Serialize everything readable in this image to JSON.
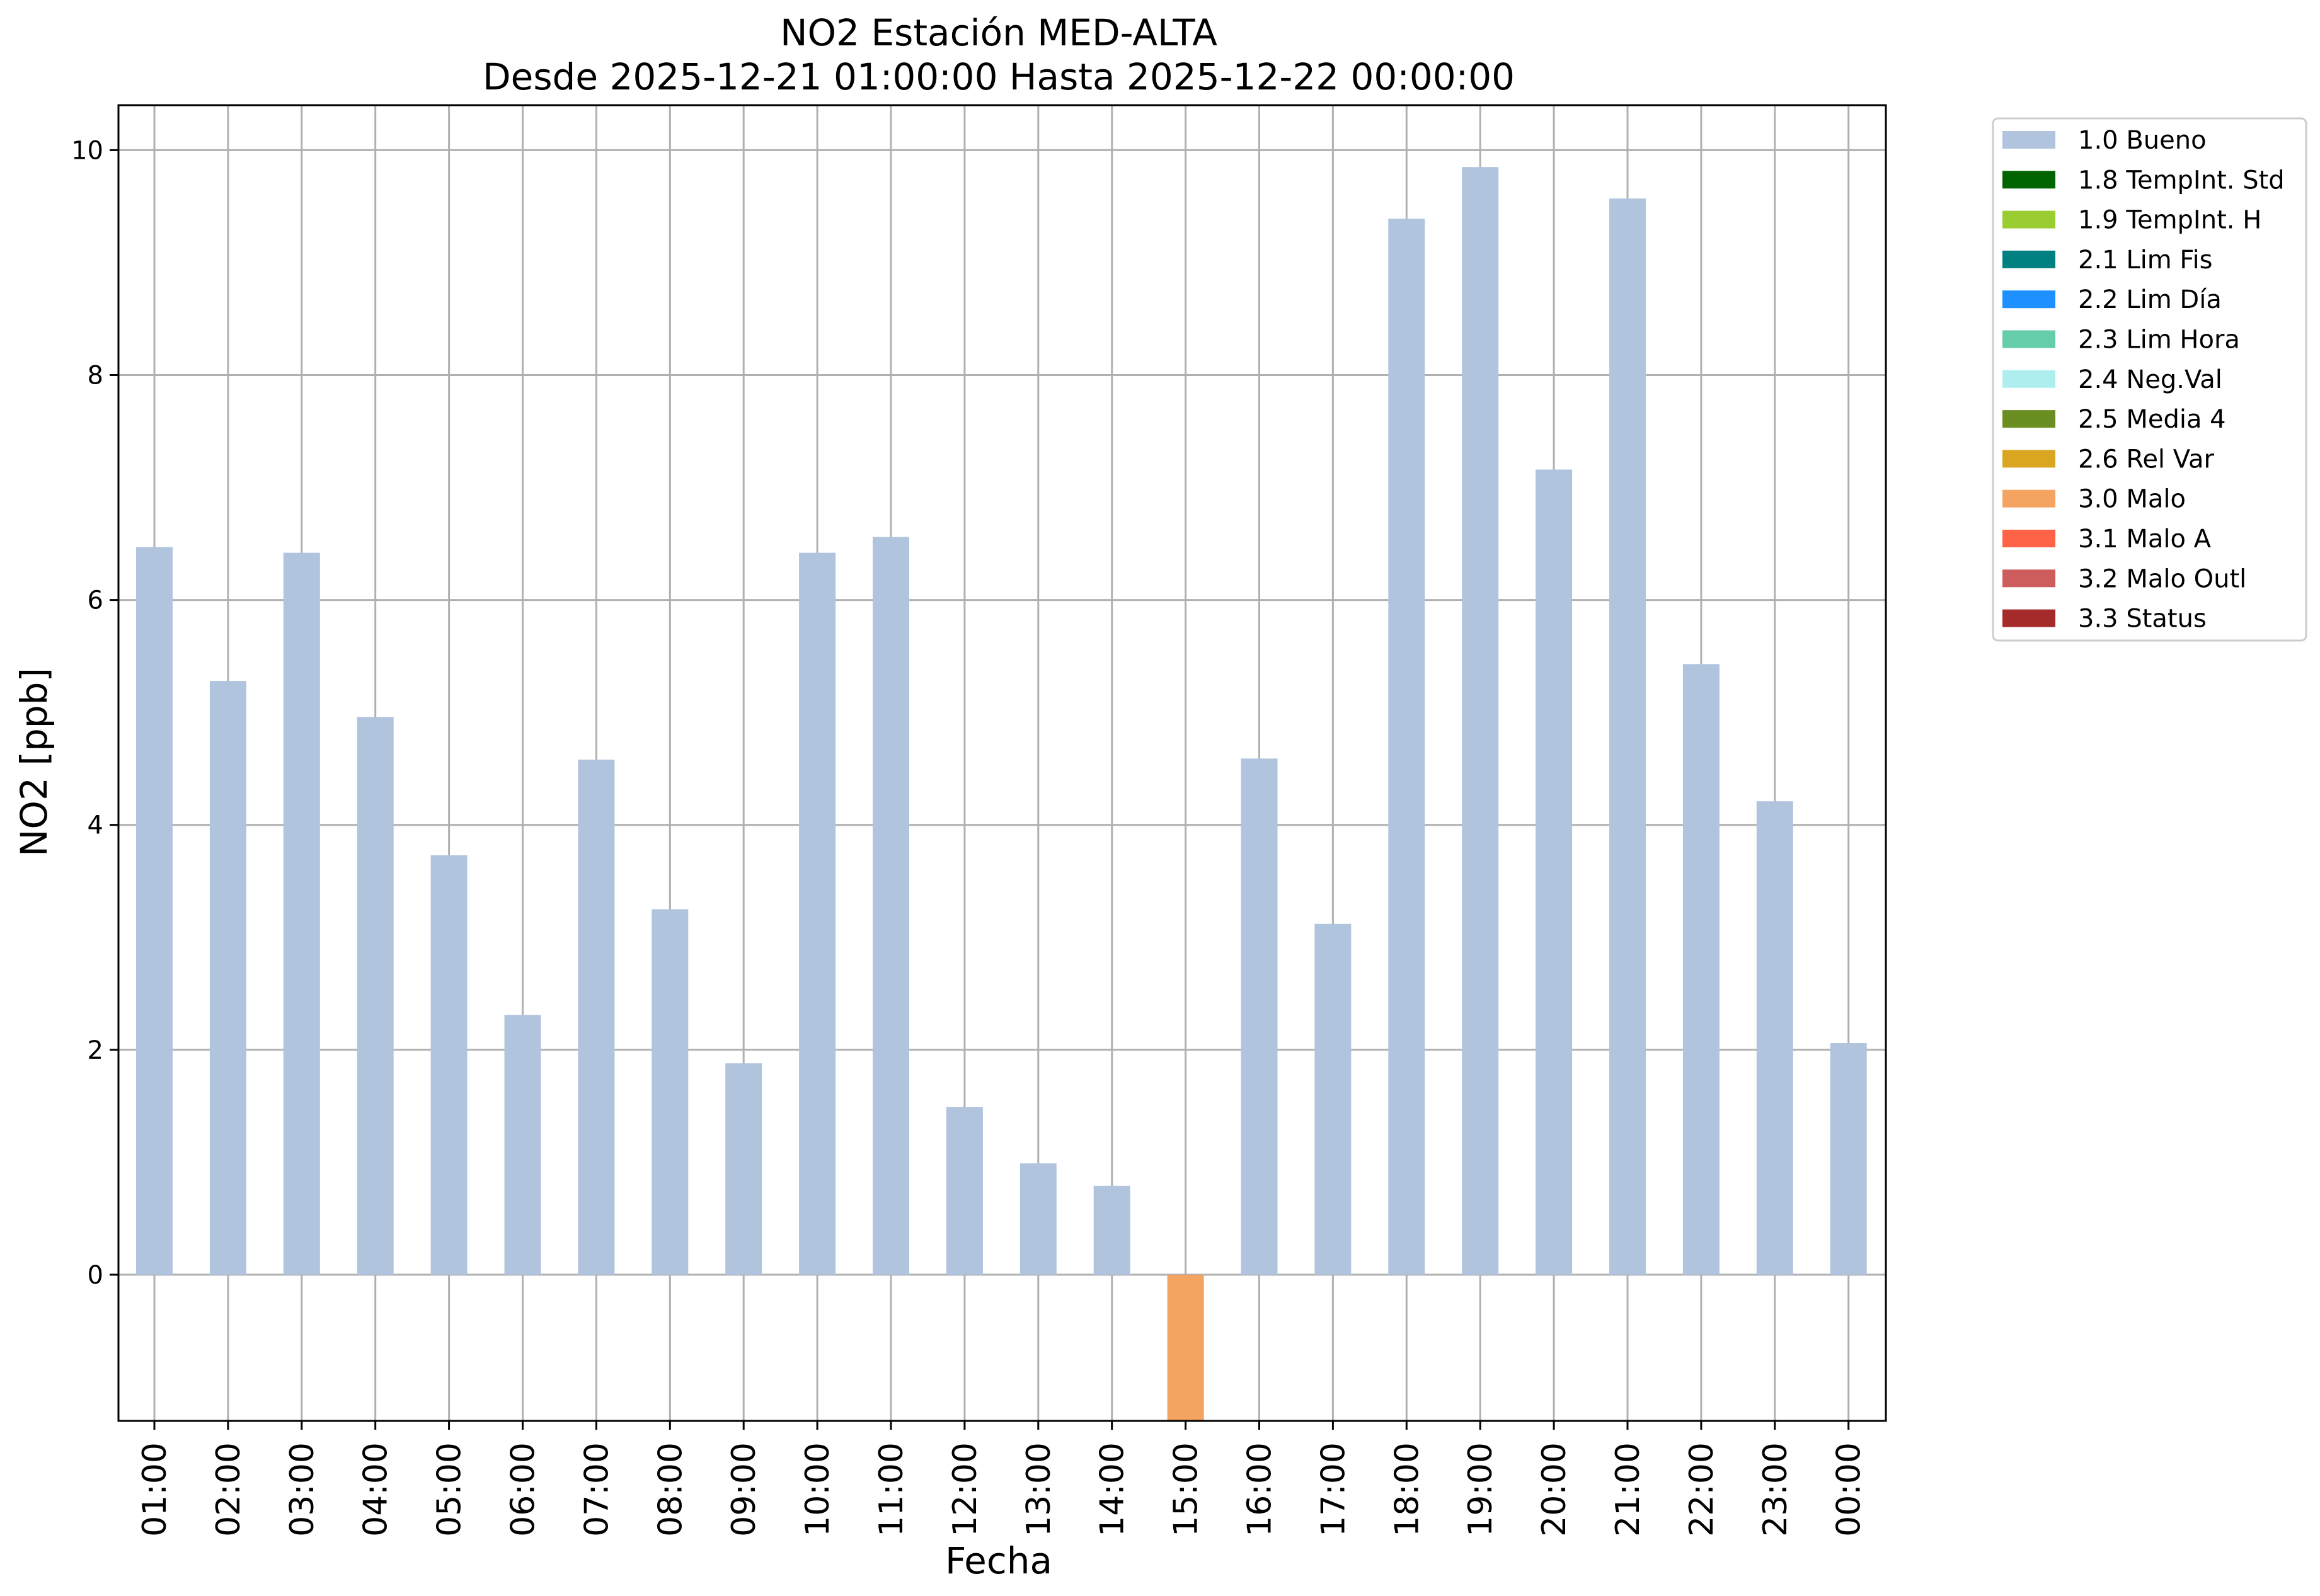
{
  "chart_data": {
    "type": "bar",
    "title": "NO2 Estación MED-ALTA",
    "subtitle": "Desde 2025-12-21 01:00:00 Hasta 2025-12-22 00:00:00",
    "xlabel": "Fecha",
    "ylabel": "NO2 [ppb]",
    "ylim": [
      -1.3,
      10.4
    ],
    "yticks": [
      "0",
      "2",
      "4",
      "6",
      "8",
      "10"
    ],
    "grid": true,
    "legend_position": "outside-right-top",
    "categories": [
      "01:00",
      "02:00",
      "03:00",
      "04:00",
      "05:00",
      "06:00",
      "07:00",
      "08:00",
      "09:00",
      "10:00",
      "11:00",
      "12:00",
      "13:00",
      "14:00",
      "15:00",
      "16:00",
      "17:00",
      "18:00",
      "19:00",
      "20:00",
      "21:00",
      "22:00",
      "23:00",
      "00:00"
    ],
    "series": [
      {
        "name": "1.0 Bueno",
        "color": "#b0c4de",
        "values": [
          6.47,
          5.28,
          6.42,
          4.96,
          3.73,
          2.31,
          4.58,
          3.25,
          1.88,
          6.42,
          6.56,
          1.49,
          0.99,
          0.79,
          null,
          4.59,
          3.12,
          9.39,
          9.85,
          7.16,
          9.57,
          5.43,
          4.21,
          2.06
        ]
      },
      {
        "name": "3.0 Malo",
        "color": "#f4a460",
        "values": [
          null,
          null,
          null,
          null,
          null,
          null,
          null,
          null,
          null,
          null,
          null,
          null,
          null,
          null,
          -1.3,
          null,
          null,
          null,
          null,
          null,
          null,
          null,
          null,
          null
        ]
      }
    ],
    "legend": [
      {
        "label": "1.0 Bueno",
        "color": "#b0c4de"
      },
      {
        "label": "1.8 TempInt. Std",
        "color": "#006400"
      },
      {
        "label": "1.9 TempInt. H",
        "color": "#9acd32"
      },
      {
        "label": "2.1 Lim Fis",
        "color": "#008080"
      },
      {
        "label": "2.2 Lim Día",
        "color": "#1e90ff"
      },
      {
        "label": "2.3 Lim Hora",
        "color": "#66cdaa"
      },
      {
        "label": "2.4 Neg.Val",
        "color": "#afeeee"
      },
      {
        "label": "2.5 Media 4",
        "color": "#6b8e23"
      },
      {
        "label": "2.6 Rel Var",
        "color": "#daa520"
      },
      {
        "label": "3.0 Malo",
        "color": "#f4a460"
      },
      {
        "label": "3.1 Malo A",
        "color": "#ff6347"
      },
      {
        "label": "3.2 Malo Outl",
        "color": "#cd5c5c"
      },
      {
        "label": "3.3 Status",
        "color": "#a52a2a"
      }
    ]
  }
}
